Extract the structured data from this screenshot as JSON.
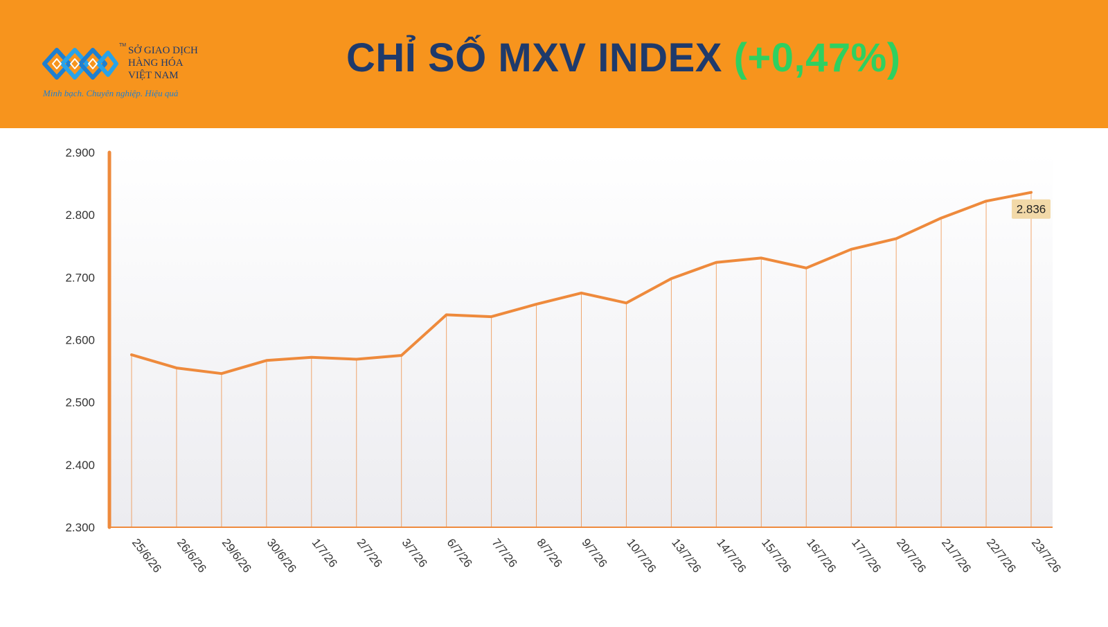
{
  "header": {
    "logo": {
      "name_line1": "SỞ GIAO DỊCH",
      "name_line2": "HÀNG HÓA",
      "name_line3": "VIỆT NAM",
      "tm": "TM",
      "slogan": "Minh bạch. Chuyên nghiệp. Hiệu quả"
    },
    "title": "CHỈ SỐ MXV INDEX",
    "change": "(+0,47%)"
  },
  "colors": {
    "header_bg": "#f7941d",
    "title": "#1f3a6b",
    "change": "#2fd060",
    "line": "#ee8a3c",
    "last_label_bg": "#f2d9a8"
  },
  "chart_data": {
    "type": "line",
    "title": "CHỈ SỐ MXV INDEX",
    "xlabel": "",
    "ylabel": "",
    "ylim": [
      2300,
      2900
    ],
    "yticks": [
      2300,
      2400,
      2500,
      2600,
      2700,
      2800,
      2900
    ],
    "ytick_labels": [
      "2.300",
      "2.400",
      "2.500",
      "2.600",
      "2.700",
      "2.800",
      "2.900"
    ],
    "grid": false,
    "categories": [
      "25/6/26",
      "26/6/26",
      "29/6/26",
      "30/6/26",
      "1/7/26",
      "2/7/26",
      "3/7/26",
      "6/7/26",
      "7/7/26",
      "8/7/26",
      "9/7/26",
      "10/7/26",
      "13/7/26",
      "14/7/26",
      "15/7/26",
      "16/7/26",
      "17/7/26",
      "20/7/26",
      "21/7/26",
      "22/7/26",
      "23/7/26"
    ],
    "series": [
      {
        "values": [
          2576,
          2555,
          2546,
          2567,
          2572,
          2569,
          2575,
          2640,
          2637,
          2657,
          2675,
          2659,
          2698,
          2724,
          2731,
          2715,
          2745,
          2762,
          2795,
          2822,
          2836
        ]
      }
    ],
    "last_value_label": "2.836"
  }
}
